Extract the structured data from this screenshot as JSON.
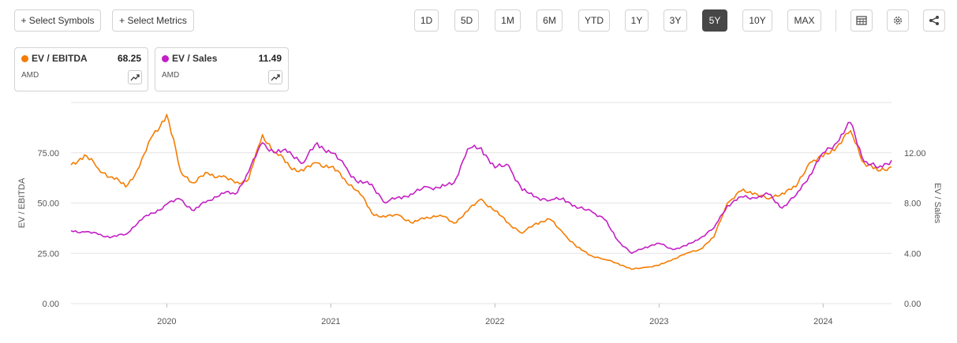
{
  "toolbar": {
    "select_symbols": "+ Select Symbols",
    "select_metrics": "+ Select Metrics",
    "ranges": [
      "1D",
      "5D",
      "1M",
      "6M",
      "YTD",
      "1Y",
      "3Y",
      "5Y",
      "10Y",
      "MAX"
    ],
    "active_range": "5Y",
    "icons": [
      "table-icon",
      "gear-icon",
      "share-icon"
    ]
  },
  "legend": [
    {
      "name": "EV / EBITDA",
      "value": "68.25",
      "ticker": "AMD",
      "color": "#f57c00"
    },
    {
      "name": "EV / Sales",
      "value": "11.49",
      "ticker": "AMD",
      "color": "#c41fc4"
    }
  ],
  "chart_data": {
    "type": "line",
    "xlabel": "",
    "x_tick_labels": [
      "2020",
      "2021",
      "2022",
      "2023",
      "2024"
    ],
    "x_range": [
      "2019-06",
      "2024-06"
    ],
    "y_left": {
      "label": "EV / EBITDA",
      "ticks": [
        "0.00",
        "25.00",
        "50.00",
        "75.00"
      ],
      "range": [
        0,
        100
      ]
    },
    "y_right": {
      "label": "EV / Sales",
      "ticks": [
        "0.00",
        "4.00",
        "8.00",
        "12.00"
      ],
      "range": [
        0,
        16
      ]
    },
    "grid": true,
    "series": [
      {
        "name": "EV / EBITDA",
        "axis": "left",
        "color": "#f57c00",
        "points": [
          [
            "2019-06",
            69
          ],
          [
            "2019-07",
            74
          ],
          [
            "2019-08",
            67
          ],
          [
            "2019-09",
            63
          ],
          [
            "2019-10",
            58
          ],
          [
            "2019-11",
            68
          ],
          [
            "2019-12",
            84
          ],
          [
            "2020-01",
            94
          ],
          [
            "2020-02",
            66
          ],
          [
            "2020-03",
            60
          ],
          [
            "2020-04",
            65
          ],
          [
            "2020-05",
            63
          ],
          [
            "2020-06",
            60
          ],
          [
            "2020-07",
            62
          ],
          [
            "2020-08",
            84
          ],
          [
            "2020-09",
            75
          ],
          [
            "2020-10",
            68
          ],
          [
            "2020-11",
            66
          ],
          [
            "2020-12",
            70
          ],
          [
            "2021-01",
            68
          ],
          [
            "2021-02",
            62
          ],
          [
            "2021-03",
            56
          ],
          [
            "2021-04",
            45
          ],
          [
            "2021-05",
            43
          ],
          [
            "2021-06",
            44
          ],
          [
            "2021-07",
            40
          ],
          [
            "2021-08",
            43
          ],
          [
            "2021-09",
            44
          ],
          [
            "2021-10",
            40
          ],
          [
            "2021-11",
            46
          ],
          [
            "2021-12",
            52
          ],
          [
            "2022-01",
            46
          ],
          [
            "2022-02",
            40
          ],
          [
            "2022-03",
            35
          ],
          [
            "2022-04",
            40
          ],
          [
            "2022-05",
            42
          ],
          [
            "2022-06",
            35
          ],
          [
            "2022-07",
            28
          ],
          [
            "2022-08",
            24
          ],
          [
            "2022-09",
            22
          ],
          [
            "2022-10",
            20
          ],
          [
            "2022-11",
            17
          ],
          [
            "2022-12",
            18
          ],
          [
            "2023-01",
            19
          ],
          [
            "2023-02",
            22
          ],
          [
            "2023-03",
            25
          ],
          [
            "2023-04",
            27
          ],
          [
            "2023-05",
            33
          ],
          [
            "2023-06",
            50
          ],
          [
            "2023-07",
            56
          ],
          [
            "2023-08",
            55
          ],
          [
            "2023-09",
            52
          ],
          [
            "2023-10",
            55
          ],
          [
            "2023-11",
            58
          ],
          [
            "2023-12",
            70
          ],
          [
            "2024-01",
            73
          ],
          [
            "2024-02",
            78
          ],
          [
            "2024-03",
            86
          ],
          [
            "2024-04",
            70
          ],
          [
            "2024-05",
            66
          ],
          [
            "2024-06",
            68
          ]
        ]
      },
      {
        "name": "EV / Sales",
        "axis": "right",
        "color": "#c41fc4",
        "points": [
          [
            "2019-06",
            5.8
          ],
          [
            "2019-07",
            5.7
          ],
          [
            "2019-08",
            5.5
          ],
          [
            "2019-09",
            5.3
          ],
          [
            "2019-10",
            5.5
          ],
          [
            "2019-11",
            6.6
          ],
          [
            "2019-12",
            7.2
          ],
          [
            "2020-01",
            7.9
          ],
          [
            "2020-02",
            8.3
          ],
          [
            "2020-03",
            7.4
          ],
          [
            "2020-04",
            8.2
          ],
          [
            "2020-05",
            8.8
          ],
          [
            "2020-06",
            8.7
          ],
          [
            "2020-07",
            10.5
          ],
          [
            "2020-08",
            12.8
          ],
          [
            "2020-09",
            12.0
          ],
          [
            "2020-10",
            12.1
          ],
          [
            "2020-11",
            11.2
          ],
          [
            "2020-12",
            12.8
          ],
          [
            "2021-01",
            12.0
          ],
          [
            "2021-02",
            11.0
          ],
          [
            "2021-03",
            9.6
          ],
          [
            "2021-04",
            9.5
          ],
          [
            "2021-05",
            8.0
          ],
          [
            "2021-06",
            8.5
          ],
          [
            "2021-07",
            8.7
          ],
          [
            "2021-08",
            9.3
          ],
          [
            "2021-09",
            9.2
          ],
          [
            "2021-10",
            9.6
          ],
          [
            "2021-11",
            12.3
          ],
          [
            "2021-12",
            12.4
          ],
          [
            "2022-01",
            10.8
          ],
          [
            "2022-02",
            11.0
          ],
          [
            "2022-03",
            9.0
          ],
          [
            "2022-04",
            8.5
          ],
          [
            "2022-05",
            8.2
          ],
          [
            "2022-06",
            8.4
          ],
          [
            "2022-07",
            7.6
          ],
          [
            "2022-08",
            7.4
          ],
          [
            "2022-09",
            6.7
          ],
          [
            "2022-10",
            5.0
          ],
          [
            "2022-11",
            4.0
          ],
          [
            "2022-12",
            4.5
          ],
          [
            "2023-01",
            4.8
          ],
          [
            "2023-02",
            4.3
          ],
          [
            "2023-03",
            4.6
          ],
          [
            "2023-04",
            5.2
          ],
          [
            "2023-05",
            6.0
          ],
          [
            "2023-06",
            7.8
          ],
          [
            "2023-07",
            8.5
          ],
          [
            "2023-08",
            8.4
          ],
          [
            "2023-09",
            8.7
          ],
          [
            "2023-10",
            7.6
          ],
          [
            "2023-11",
            8.6
          ],
          [
            "2023-12",
            10.2
          ],
          [
            "2024-01",
            12.0
          ],
          [
            "2024-02",
            12.8
          ],
          [
            "2024-03",
            14.4
          ],
          [
            "2024-04",
            11.3
          ],
          [
            "2024-05",
            10.8
          ],
          [
            "2024-06",
            11.4
          ]
        ]
      }
    ]
  }
}
